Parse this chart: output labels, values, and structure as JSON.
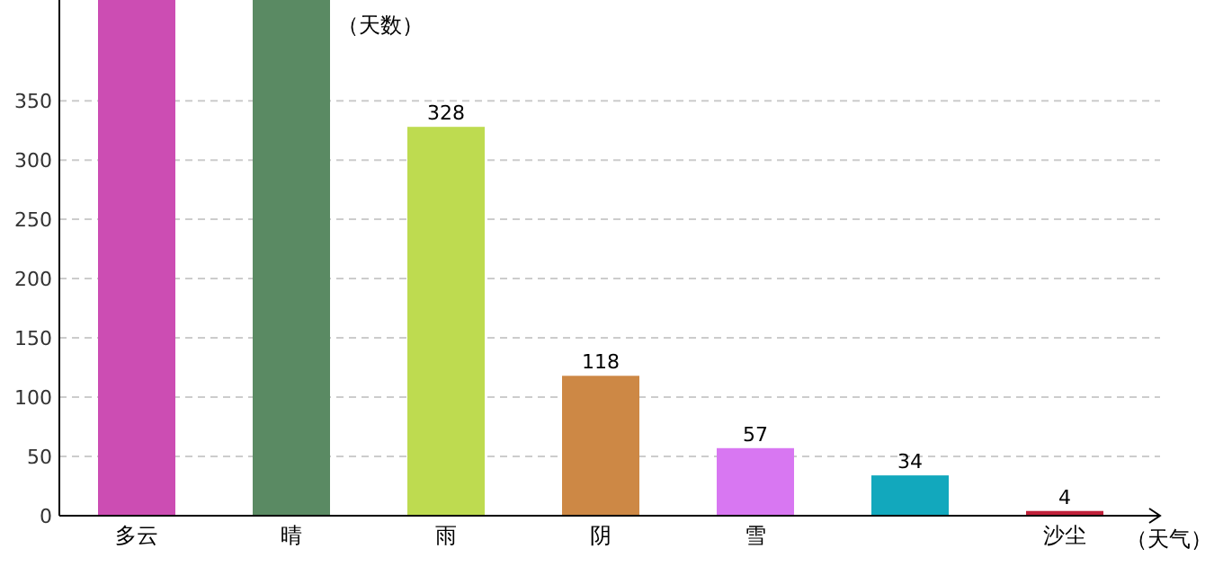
{
  "chart_data": {
    "type": "bar",
    "ylabel": "（天数）",
    "xlabel": "（天气）",
    "categories": [
      "多云",
      "晴",
      "雨",
      "阴",
      "雪",
      null,
      "沙尘"
    ],
    "values": [
      435,
      435,
      328,
      118,
      57,
      34,
      4
    ],
    "colors": [
      "#cc4db3",
      "#5a8a63",
      "#bedb50",
      "#cd8845",
      "#d877f2",
      "#12a8bd",
      "#c0213a"
    ],
    "value_labels": [
      null,
      null,
      "328",
      "118",
      "57",
      "34",
      "4"
    ],
    "ylim": [
      0,
      435
    ],
    "yticks": [
      0,
      50,
      100,
      150,
      200,
      250,
      300,
      350
    ],
    "grid": "y"
  }
}
